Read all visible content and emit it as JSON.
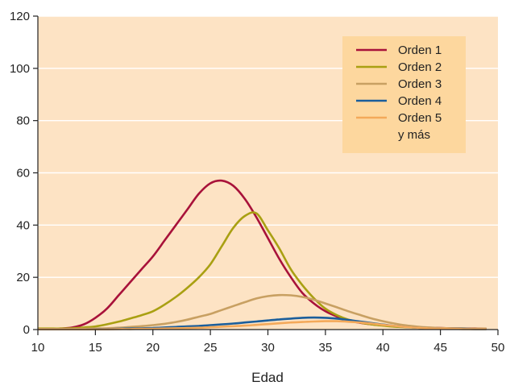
{
  "chart_data": {
    "type": "line",
    "title": "",
    "xlabel": "Edad",
    "ylabel": "",
    "xlim": [
      10,
      50
    ],
    "ylim": [
      0,
      120
    ],
    "x_ticks": [
      "10",
      "15",
      "20",
      "25",
      "30",
      "35",
      "40",
      "45",
      "50"
    ],
    "y_ticks": [
      "0",
      "20",
      "40",
      "60",
      "80",
      "100",
      "120"
    ],
    "grid": "horizontal",
    "legend_placement": "top-right",
    "colors": {
      "plot_background": "#FDE3C4",
      "gridline": "#FFFFFF",
      "legend_background": "#FDD79E",
      "axis": "#222222"
    },
    "series": [
      {
        "name": "Orden 1",
        "color": "#A8123A",
        "x": [
          10,
          11,
          12,
          13,
          14,
          15,
          16,
          17,
          18,
          19,
          20,
          21,
          22,
          23,
          24,
          25,
          26,
          27,
          28,
          29,
          30,
          31,
          32,
          33,
          34,
          35,
          36,
          37,
          38,
          39,
          40,
          41,
          42,
          43,
          44,
          45,
          46,
          47,
          48,
          49
        ],
        "values": [
          0.3,
          0.3,
          0.4,
          0.8,
          2,
          4.5,
          8,
          13,
          18,
          23,
          28,
          34,
          40,
          46,
          52,
          56,
          57,
          55,
          50,
          43,
          35,
          27,
          20,
          14,
          10,
          7,
          5,
          3.5,
          2.6,
          2,
          1.6,
          1.2,
          1,
          0.8,
          0.7,
          0.6,
          0.5,
          0.4,
          0.4,
          0.3
        ]
      },
      {
        "name": "Orden 2",
        "color": "#A9A012",
        "x": [
          10,
          11,
          12,
          13,
          14,
          15,
          16,
          17,
          18,
          19,
          20,
          21,
          22,
          23,
          24,
          25,
          26,
          27,
          28,
          29,
          30,
          31,
          32,
          33,
          34,
          35,
          36,
          37,
          38,
          39,
          40,
          41,
          42,
          43,
          44,
          45,
          46,
          47,
          48,
          49
        ],
        "values": [
          0.4,
          0.4,
          0.4,
          0.5,
          0.8,
          1.2,
          2,
          3,
          4.2,
          5.5,
          7,
          9.5,
          12.5,
          16,
          20,
          25,
          32,
          39,
          43.5,
          44.5,
          38,
          31,
          23,
          17,
          12,
          8,
          5.5,
          3.8,
          2.7,
          2,
          1.5,
          1.1,
          0.9,
          0.7,
          0.6,
          0.5,
          0.4,
          0.4,
          0.3,
          0.3
        ]
      },
      {
        "name": "Orden 3",
        "color": "#C8A062",
        "x": [
          10,
          11,
          12,
          13,
          14,
          15,
          16,
          17,
          18,
          19,
          20,
          21,
          22,
          23,
          24,
          25,
          26,
          27,
          28,
          29,
          30,
          31,
          32,
          33,
          34,
          35,
          36,
          37,
          38,
          39,
          40,
          41,
          42,
          43,
          44,
          45,
          46,
          47,
          48,
          49
        ],
        "values": [
          0.2,
          0.2,
          0.2,
          0.2,
          0.3,
          0.4,
          0.5,
          0.7,
          1,
          1.3,
          1.7,
          2.2,
          2.9,
          3.8,
          4.9,
          6,
          7.5,
          9,
          10.5,
          11.9,
          12.8,
          13.2,
          13.1,
          12.5,
          11.4,
          10,
          8.5,
          7,
          5.6,
          4.3,
          3.2,
          2.3,
          1.6,
          1.1,
          0.8,
          0.6,
          0.5,
          0.4,
          0.3,
          0.3
        ]
      },
      {
        "name": "Orden 4",
        "color": "#1B5E9B",
        "x": [
          10,
          11,
          12,
          13,
          14,
          15,
          16,
          17,
          18,
          19,
          20,
          21,
          22,
          23,
          24,
          25,
          26,
          27,
          28,
          29,
          30,
          31,
          32,
          33,
          34,
          35,
          36,
          37,
          38,
          39,
          40,
          41,
          42,
          43,
          44,
          45,
          46,
          47,
          48,
          49
        ],
        "values": [
          0.1,
          0.1,
          0.1,
          0.1,
          0.1,
          0.2,
          0.2,
          0.3,
          0.4,
          0.5,
          0.6,
          0.8,
          1,
          1.2,
          1.4,
          1.7,
          2,
          2.3,
          2.7,
          3.1,
          3.5,
          3.9,
          4.2,
          4.5,
          4.6,
          4.5,
          4.2,
          3.7,
          3.1,
          2.5,
          1.9,
          1.4,
          1,
          0.7,
          0.5,
          0.4,
          0.3,
          0.3,
          0.2,
          0.2
        ]
      },
      {
        "name": "Orden 5\ny más",
        "color": "#F4A95A",
        "x": [
          10,
          11,
          12,
          13,
          14,
          15,
          16,
          17,
          18,
          19,
          20,
          21,
          22,
          23,
          24,
          25,
          26,
          27,
          28,
          29,
          30,
          31,
          32,
          33,
          34,
          35,
          36,
          37,
          38,
          39,
          40,
          41,
          42,
          43,
          44,
          45,
          46,
          47,
          48,
          49
        ],
        "values": [
          0.1,
          0.1,
          0.1,
          0.1,
          0.1,
          0.1,
          0.1,
          0.2,
          0.2,
          0.3,
          0.3,
          0.4,
          0.5,
          0.6,
          0.7,
          0.9,
          1.1,
          1.3,
          1.5,
          1.8,
          2.1,
          2.4,
          2.7,
          2.9,
          3.1,
          3.2,
          3.2,
          3,
          2.7,
          2.3,
          1.8,
          1.4,
          1,
          0.7,
          0.5,
          0.4,
          0.3,
          0.2,
          0.2,
          0.2
        ]
      }
    ]
  }
}
